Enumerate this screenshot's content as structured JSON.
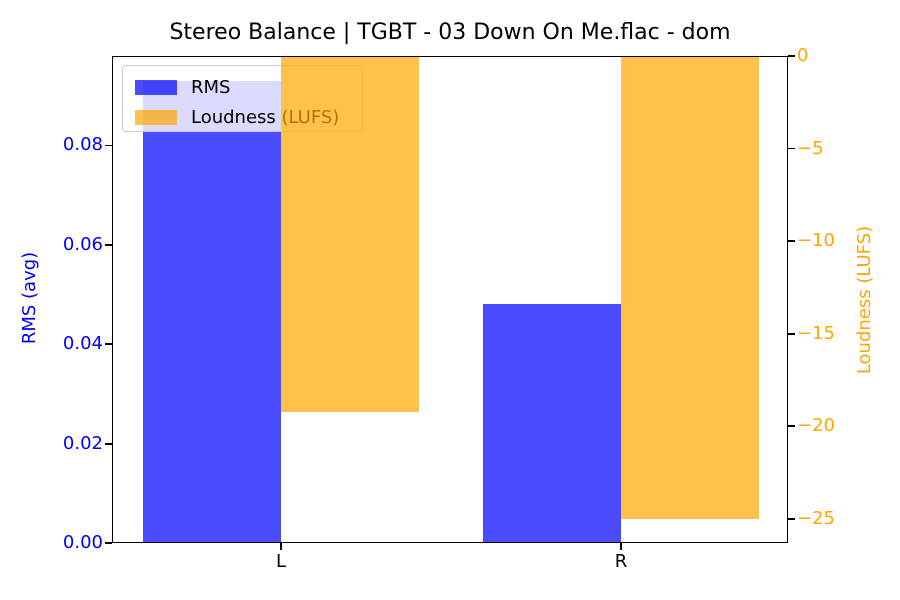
{
  "chart_data": {
    "type": "bar",
    "title": "Stereo Balance | TGBT - 03 Down On Me.flac - dom",
    "categories": [
      "L",
      "R"
    ],
    "series": [
      {
        "name": "RMS",
        "axis": "left",
        "color": "rgba(0,0,255,0.7)",
        "values": [
          0.093,
          0.048
        ]
      },
      {
        "name": "Loudness (LUFS)",
        "axis": "right",
        "color": "rgba(255,165,0,0.7)",
        "values": [
          -19.2,
          -25.0
        ]
      }
    ],
    "left_axis": {
      "label": "RMS (avg)",
      "color": "#0000ff",
      "ylim": [
        0,
        0.098
      ],
      "tick_values": [
        0,
        0.02,
        0.04,
        0.06,
        0.08
      ],
      "tick_labels": [
        "0.00",
        "0.02",
        "0.04",
        "0.06",
        "0.08"
      ]
    },
    "right_axis": {
      "label": "Loudness (LUFS)",
      "color": "#ffa500",
      "ylim": [
        -26.3,
        0
      ],
      "tick_values": [
        0,
        -5,
        -10,
        -15,
        -20,
        -25
      ],
      "tick_labels": [
        "0",
        "−5",
        "−10",
        "−15",
        "−20",
        "−25"
      ]
    },
    "legend": {
      "position": "upper left",
      "entries": [
        "RMS",
        "Loudness (LUFS)"
      ]
    },
    "grid": false,
    "bar_layout": {
      "grouped": true,
      "bar_width_frac": 0.4
    }
  }
}
